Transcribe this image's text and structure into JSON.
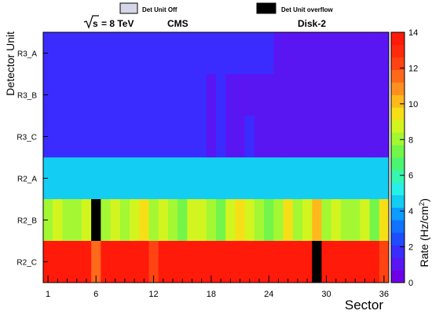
{
  "chart_data": {
    "type": "heatmap",
    "header": {
      "sqrt_s": "s",
      "energy": "= 8 TeV",
      "experiment": "CMS",
      "disk": "Disk-2"
    },
    "legend": {
      "off_label": "Det Unit Off",
      "off_color": "#d6d6ea",
      "overflow_label": "Det Unit overflow",
      "overflow_color": "#000000"
    },
    "xlabel": "Sector",
    "ylabel": "Detector Unit",
    "zlabel_main": "Rate (Hz/cm",
    "zlabel_sup": "2",
    "zlabel_end": ")",
    "x_ticks": [
      "1",
      "6",
      "12",
      "18",
      "24",
      "30",
      "36"
    ],
    "z_ticks": [
      "0",
      "2",
      "4",
      "6",
      "8",
      "10",
      "12",
      "14"
    ],
    "zlim": [
      0,
      14
    ],
    "rows": [
      "R3_A",
      "R3_B",
      "R3_C",
      "R2_A",
      "R2_B",
      "R2_C"
    ],
    "values": [
      [
        1.5,
        1.8,
        1.6,
        1.5,
        1.7,
        1.8,
        1.6,
        1.5,
        1.7,
        1.6,
        1.8,
        1.5,
        1.6,
        1.7,
        1.5,
        1.6,
        1.8,
        1.6,
        1.5,
        1.7,
        1.8,
        1.5,
        1.6,
        1.6,
        1.4,
        1.2,
        0.9,
        0.9,
        0.9,
        0.8,
        1.0,
        0.9,
        0.9,
        0.8,
        0.9,
        1.2
      ],
      [
        1.6,
        1.5,
        1.7,
        1.9,
        1.6,
        1.5,
        1.8,
        1.6,
        1.5,
        1.7,
        1.6,
        1.5,
        1.8,
        1.6,
        1.5,
        1.7,
        1.6,
        1.4,
        1.5,
        1.2,
        1.1,
        1.0,
        1.0,
        0.9,
        1.1,
        1.0,
        1.0,
        1.3,
        1.1,
        1.0,
        1.2,
        1.0,
        1.1,
        1.0,
        1.2,
        1.3
      ],
      [
        1.6,
        1.8,
        2.0,
        1.7,
        1.6,
        1.5,
        1.7,
        1.9,
        1.6,
        1.5,
        1.7,
        1.6,
        1.5,
        1.6,
        1.8,
        1.5,
        1.6,
        1.4,
        1.5,
        1.2,
        1.0,
        1.5,
        1.3,
        1.0,
        1.1,
        1.2,
        1.0,
        1.1,
        1.0,
        1.2,
        1.1,
        1.0,
        1.3,
        1.1,
        1.2,
        1.1
      ],
      [
        4.8,
        4.8,
        4.3,
        4.4,
        4.8,
        4.3,
        4.4,
        4.8,
        4.3,
        4.4,
        4.4,
        4.8,
        4.4,
        4.4,
        4.4,
        4.4,
        4.8,
        4.4,
        4.8,
        4.4,
        4.3,
        4.4,
        4.8,
        4.3,
        4.4,
        4.4,
        4.8,
        4.4,
        4.4,
        4.8,
        4.4,
        4.3,
        4.8,
        4.4,
        4.4,
        4.3
      ],
      [
        8.0,
        9.0,
        7.8,
        8.0,
        8.8,
        "overflow",
        8.0,
        8.6,
        7.8,
        8.4,
        9.5,
        7.8,
        8.5,
        7.8,
        7.5,
        8.4,
        9.0,
        7.8,
        7.5,
        8.4,
        9.2,
        8.6,
        7.8,
        7.5,
        8.2,
        9.2,
        7.8,
        8.4,
        10.2,
        8.2,
        9.0,
        7.8,
        8.2,
        9.0,
        7.6,
        9.4
      ],
      [
        13.5,
        13.6,
        13.5,
        13.5,
        13.6,
        11.8,
        13.5,
        13.6,
        13.5,
        13.6,
        13.5,
        12.0,
        13.5,
        13.6,
        13.5,
        13.6,
        13.5,
        13.6,
        13.5,
        13.6,
        13.5,
        13.6,
        13.5,
        13.6,
        13.5,
        13.6,
        13.5,
        13.6,
        "overflow",
        13.5,
        13.6,
        13.5,
        13.6,
        13.5,
        13.6,
        12.2
      ]
    ]
  }
}
